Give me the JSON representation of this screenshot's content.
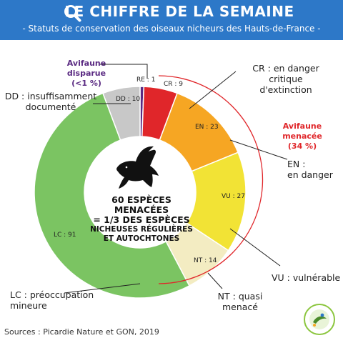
{
  "header": {
    "title": "LE CHIFFRE DE LA SEMAINE",
    "subtitle": "- Statuts de conservation des oiseaux nicheurs des Hauts-de-France -",
    "icon": "magnifier-icon",
    "bg_color": "#2d78c8"
  },
  "chart_data": {
    "type": "pie",
    "variant": "donut",
    "slices": [
      {
        "code": "RE",
        "value": 1,
        "label": "RE : 1",
        "color": "#5a2a82"
      },
      {
        "code": "CR",
        "value": 9,
        "label": "CR : 9",
        "color": "#e0262a"
      },
      {
        "code": "EN",
        "value": 23,
        "label": "EN : 23",
        "color": "#f6a623"
      },
      {
        "code": "VU",
        "value": 27,
        "label": "VU : 27",
        "color": "#f2e335"
      },
      {
        "code": "NT",
        "value": 14,
        "label": "NT : 14",
        "color": "#f3ecc2"
      },
      {
        "code": "LC",
        "value": 91,
        "label": "LC : 91",
        "color": "#7bc462"
      },
      {
        "code": "DD",
        "value": 10,
        "label": "DD : 10",
        "color": "#c8c8c8"
      }
    ],
    "legend": {
      "RE": "Avifaune disparue",
      "RE_pct": "(<1 %)",
      "CR1": "CR : en danger critique",
      "CR2": "d'extinction",
      "EN1": "EN :",
      "EN2": "en danger",
      "VU": "VU : vulnérable",
      "NT1": "NT : quasi",
      "NT2": "menacé",
      "LC1": "LC : préoccupation",
      "LC2": "mineure",
      "DD1": "DD : insuffisamment",
      "DD2": "documenté",
      "menace": "Avifaune menacée",
      "menace_pct": "(34 %)"
    },
    "center": {
      "line1": "60 ESPÈCES MENACÉES",
      "line2": "= 1/3 DES ESPÈCES",
      "line3": "NICHEUSES RÉGULIÈRES",
      "line4": "ET AUTOCHTONES",
      "icon": "bird-icon"
    }
  },
  "footer": {
    "source": "Sources : Picardie Nature et GON, 2019",
    "logo": "observatoire-logo"
  },
  "colors": {
    "purple_text": "#5a2a82",
    "red_text": "#e0262a"
  }
}
